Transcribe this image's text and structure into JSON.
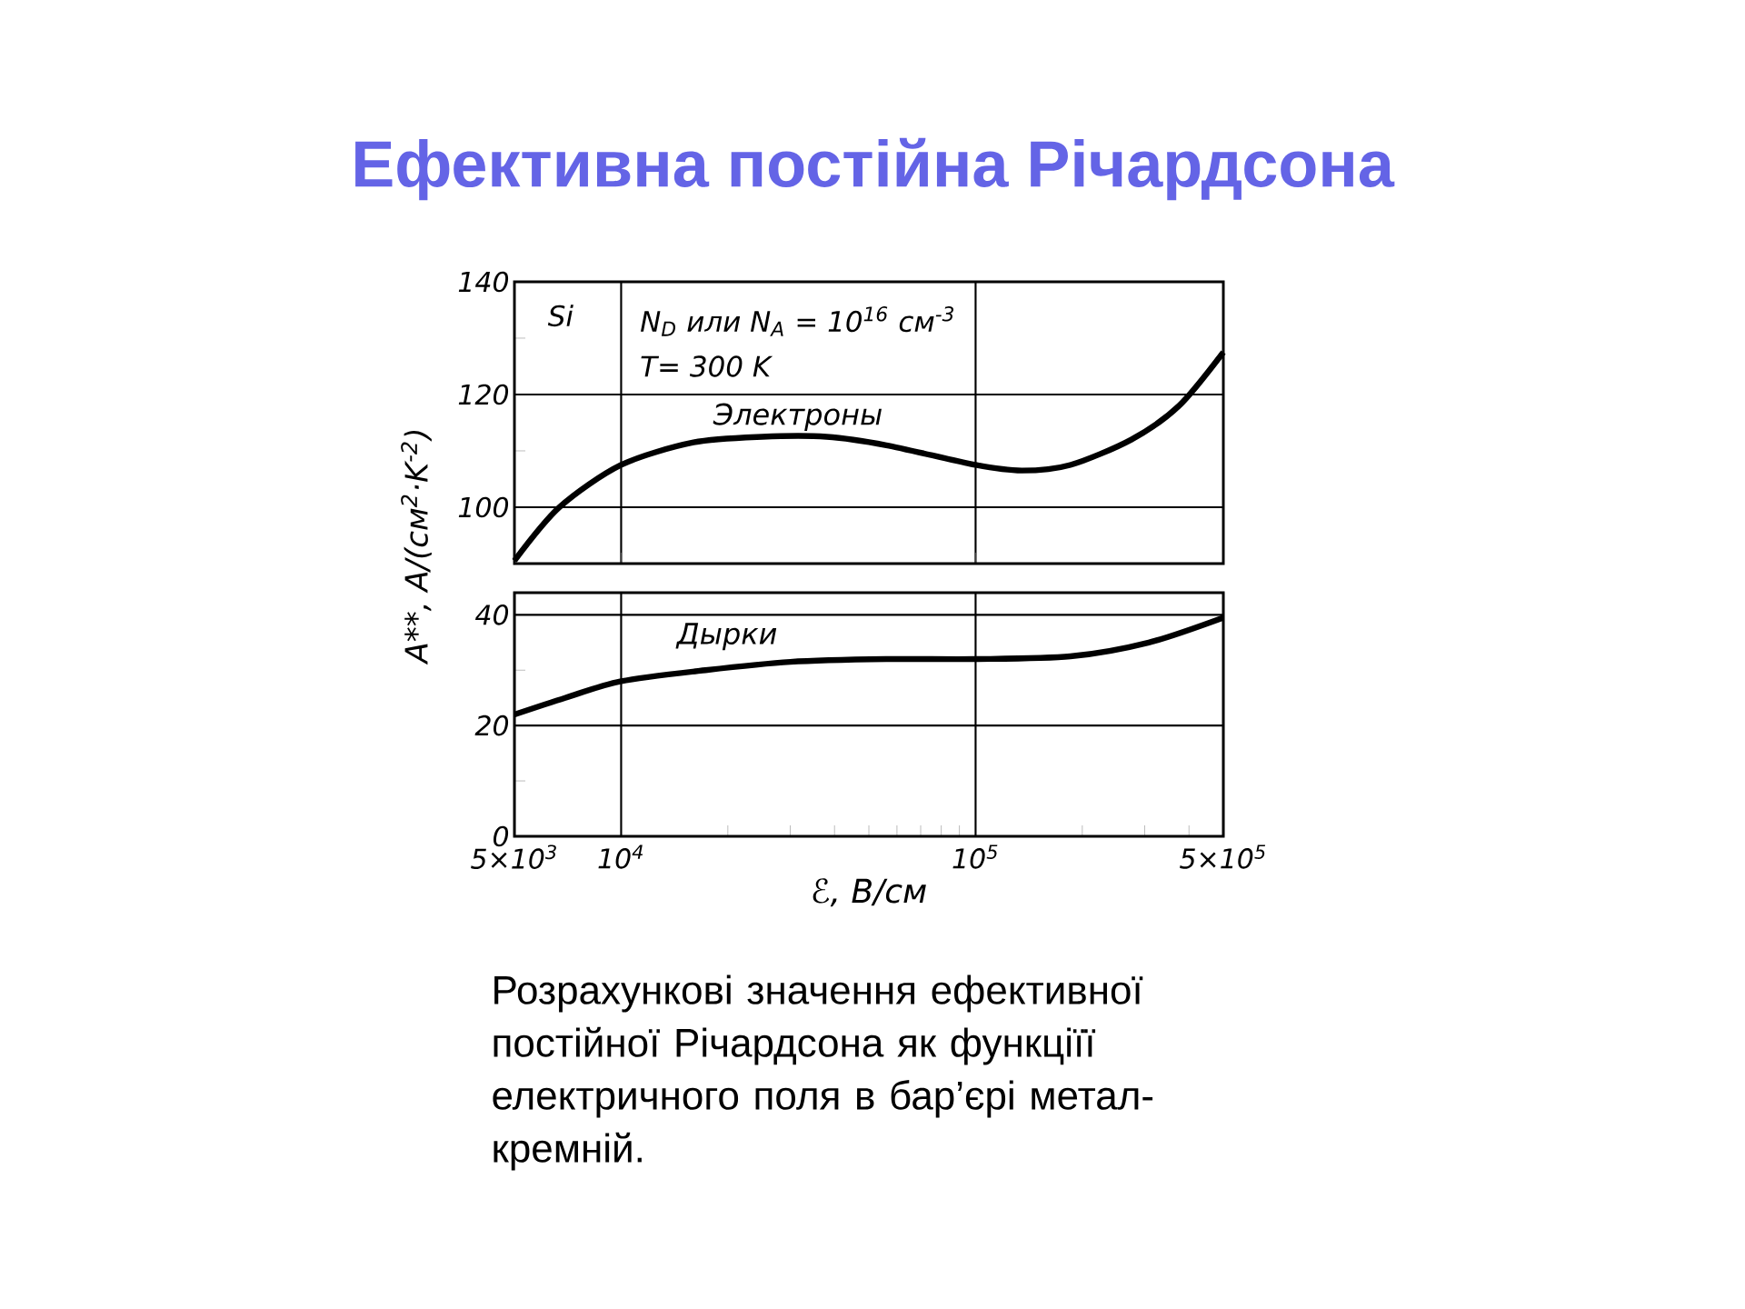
{
  "chart_data": [
    {
      "type": "line",
      "title": "Ефективна постійна Річардсона",
      "ylabel": "A**, A/(см$^{2}$·K$^{-2}$)",
      "annotations": [
        "Si",
        "N$_{D}$ или N$_{A}$ = 10$^{16}$ см$^{-3}$",
        "T= 300 K"
      ],
      "xlim": [
        5000,
        500000
      ],
      "xticks": [
        {
          "value": 5000,
          "label": null
        },
        {
          "value": 10000,
          "label": null
        },
        {
          "value": 100000,
          "label": null
        },
        {
          "value": 500000,
          "label": null
        }
      ],
      "ylim": [
        90,
        140
      ],
      "yticks": [
        100,
        120,
        140,
        {
          "value": 110,
          "label": null
        },
        {
          "value": 130,
          "label": null
        }
      ],
      "log": "x",
      "grid": true,
      "tick_labels": "y",
      "series": [
        {
          "name": "Электроны",
          "color": "#000000",
          "x": [
            5000,
            6700,
            10000,
            16000,
            25000,
            38000,
            56000,
            100000,
            135000,
            185000,
            275000,
            375000,
            500000
          ],
          "values": [
            90.5,
            100,
            107.5,
            111.5,
            112.5,
            112.5,
            111,
            107.5,
            106.5,
            107.5,
            112,
            118,
            127.5
          ]
        }
      ]
    },
    {
      "type": "line",
      "xlabel": "ℰ, В/см",
      "annotations": [
        "Розрахункові значення ефективної постійної Річардсона як функціїї електричного поля в бар’єрі метал-кремній."
      ],
      "xlim": [
        5000,
        500000
      ],
      "xticks": [
        {
          "value": 5000,
          "label": "5×10$^{3}$"
        },
        {
          "value": 10000,
          "label": "10$^{4}$"
        },
        {
          "value": 100000,
          "label": "10$^{5}$"
        },
        {
          "value": 500000,
          "label": "5×10$^{5}$"
        },
        {
          "value": 20000,
          "label": null
        },
        {
          "value": 30000,
          "label": null
        },
        {
          "value": 40000,
          "label": null
        },
        {
          "value": 50000,
          "label": null
        },
        {
          "value": 60000,
          "label": null
        },
        {
          "value": 70000,
          "label": null
        },
        {
          "value": 80000,
          "label": null
        },
        {
          "value": 90000,
          "label": null
        },
        {
          "value": 200000,
          "label": null
        },
        {
          "value": 300000,
          "label": null
        },
        {
          "value": 400000,
          "label": null
        }
      ],
      "ylim": [
        0,
        44
      ],
      "yticks": [
        0,
        20,
        40,
        {
          "value": 10,
          "label": null
        },
        {
          "value": 30,
          "label": null
        }
      ],
      "log": "x",
      "grid": true,
      "series": [
        {
          "name": "Дырки",
          "color": "#000000",
          "x": [
            5000,
            6950,
            10000,
            17300,
            30000,
            56000,
            100000,
            185000,
            308000,
            500000
          ],
          "values": [
            22,
            25,
            28,
            30,
            31.5,
            32,
            32,
            32.5,
            35,
            39.5
          ]
        }
      ]
    }
  ]
}
